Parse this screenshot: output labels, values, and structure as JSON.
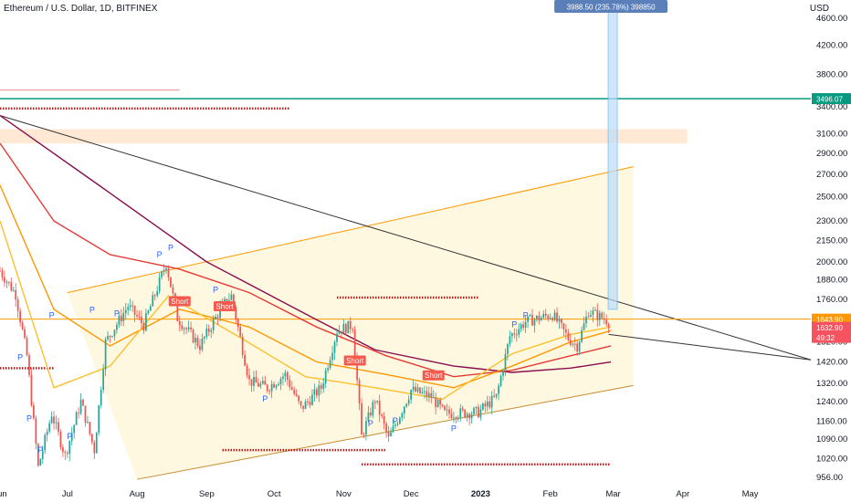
{
  "header": {
    "title": "Ethereum / U.S. Dollar, 1D, BITFINEX",
    "currency": "USD"
  },
  "colors": {
    "up": "#26a69a",
    "down": "#ef5350",
    "accent": "#2962ff",
    "level": "#089981",
    "ema_red": "#e53935",
    "ema_yellow": "#fbc02d",
    "ema_orange": "#ff9800",
    "sma_dark": "#880e4f"
  },
  "chart_data": {
    "type": "candlestick",
    "title": "Ethereum / U.S. Dollar, 1D, BITFINEX",
    "ylabel": "USD",
    "y_scale": "log",
    "ylim": [
      930,
      4900
    ],
    "y_ticks": [
      956,
      1020,
      1090,
      1160,
      1240,
      1320,
      1420,
      1520,
      1640,
      1760,
      1880,
      2000,
      2150,
      2300,
      2500,
      2700,
      2900,
      3100,
      3400,
      3800,
      4200,
      4600
    ],
    "y_tick_labels": [
      "956.00",
      "1020.00",
      "1090.00",
      "1160.00",
      "1240.00",
      "1320.00",
      "1420.00",
      "1520.00",
      "",
      "1760.00",
      "1880.00",
      "2000.00",
      "2150.00",
      "2300.00",
      "2500.00",
      "2700.00",
      "2900.00",
      "3100.00",
      "3400.00",
      "3800.00",
      "4200.00",
      "4600.00"
    ],
    "x_range": [
      "2022-06-01",
      "2023-05-28"
    ],
    "x_ticks": [
      {
        "date": "2022-06-01",
        "label": "Jun"
      },
      {
        "date": "2022-07-01",
        "label": "Jul"
      },
      {
        "date": "2022-08-01",
        "label": "Aug"
      },
      {
        "date": "2022-09-01",
        "label": "Sep"
      },
      {
        "date": "2022-10-01",
        "label": "Oct"
      },
      {
        "date": "2022-11-01",
        "label": "Nov"
      },
      {
        "date": "2022-12-01",
        "label": "Dec"
      },
      {
        "date": "2023-01-01",
        "label": "2023"
      },
      {
        "date": "2023-02-01",
        "label": "Feb"
      },
      {
        "date": "2023-03-01",
        "label": "Mar"
      },
      {
        "date": "2023-04-01",
        "label": "Apr"
      },
      {
        "date": "2023-05-01",
        "label": "May"
      }
    ],
    "price_path": [
      [
        "2022-06-01",
        1940
      ],
      [
        "2022-06-08",
        1790
      ],
      [
        "2022-06-13",
        1450
      ],
      [
        "2022-06-18",
        990
      ],
      [
        "2022-06-24",
        1190
      ],
      [
        "2022-06-30",
        1030
      ],
      [
        "2022-07-07",
        1240
      ],
      [
        "2022-07-13",
        1050
      ],
      [
        "2022-07-18",
        1520
      ],
      [
        "2022-07-28",
        1720
      ],
      [
        "2022-08-04",
        1610
      ],
      [
        "2022-08-14",
        1990
      ],
      [
        "2022-08-19",
        1650
      ],
      [
        "2022-08-29",
        1500
      ],
      [
        "2022-09-08",
        1720
      ],
      [
        "2022-09-12",
        1780
      ],
      [
        "2022-09-20",
        1330
      ],
      [
        "2022-09-28",
        1300
      ],
      [
        "2022-10-06",
        1360
      ],
      [
        "2022-10-13",
        1210
      ],
      [
        "2022-10-22",
        1300
      ],
      [
        "2022-10-29",
        1580
      ],
      [
        "2022-11-05",
        1610
      ],
      [
        "2022-11-09",
        1100
      ],
      [
        "2022-11-15",
        1250
      ],
      [
        "2022-11-21",
        1090
      ],
      [
        "2022-12-01",
        1290
      ],
      [
        "2022-12-10",
        1260
      ],
      [
        "2022-12-16",
        1190
      ],
      [
        "2022-12-31",
        1195
      ],
      [
        "2023-01-08",
        1260
      ],
      [
        "2023-01-14",
        1550
      ],
      [
        "2023-01-21",
        1630
      ],
      [
        "2023-02-02",
        1670
      ],
      [
        "2023-02-09",
        1540
      ],
      [
        "2023-02-13",
        1500
      ],
      [
        "2023-02-18",
        1690
      ],
      [
        "2023-02-27",
        1633
      ]
    ],
    "series": [
      {
        "name": "",
        "color": "#880e4f",
        "points": [
          [
            "2022-06-01",
            3300
          ],
          [
            "2022-07-15",
            2600
          ],
          [
            "2022-09-01",
            2000
          ],
          [
            "2022-10-20",
            1640
          ],
          [
            "2022-11-15",
            1480
          ],
          [
            "2022-12-20",
            1400
          ],
          [
            "2023-01-15",
            1370
          ],
          [
            "2023-02-10",
            1390
          ],
          [
            "2023-02-28",
            1420
          ]
        ]
      },
      {
        "name": "",
        "color": "#e53935",
        "points": [
          [
            "2022-06-01",
            3000
          ],
          [
            "2022-06-25",
            2300
          ],
          [
            "2022-07-20",
            2050
          ],
          [
            "2022-08-20",
            1950
          ],
          [
            "2022-09-20",
            1800
          ],
          [
            "2022-10-20",
            1600
          ],
          [
            "2022-11-20",
            1450
          ],
          [
            "2022-12-20",
            1350
          ],
          [
            "2023-01-15",
            1380
          ],
          [
            "2023-02-10",
            1450
          ],
          [
            "2023-02-28",
            1500
          ]
        ]
      },
      {
        "name": "",
        "color": "#ff9800",
        "points": [
          [
            "2022-06-01",
            2600
          ],
          [
            "2022-06-25",
            1700
          ],
          [
            "2022-07-20",
            1500
          ],
          [
            "2022-08-20",
            1700
          ],
          [
            "2022-09-20",
            1600
          ],
          [
            "2022-10-20",
            1420
          ],
          [
            "2022-11-20",
            1360
          ],
          [
            "2022-12-20",
            1300
          ],
          [
            "2023-01-15",
            1400
          ],
          [
            "2023-02-10",
            1520
          ],
          [
            "2023-02-28",
            1580
          ]
        ]
      },
      {
        "name": "",
        "color": "#fbc02d",
        "points": [
          [
            "2022-06-01",
            2300
          ],
          [
            "2022-06-25",
            1300
          ],
          [
            "2022-07-20",
            1400
          ],
          [
            "2022-08-15",
            1780
          ],
          [
            "2022-09-15",
            1550
          ],
          [
            "2022-10-15",
            1350
          ],
          [
            "2022-11-15",
            1300
          ],
          [
            "2022-12-15",
            1250
          ],
          [
            "2023-01-15",
            1460
          ],
          [
            "2023-02-10",
            1560
          ],
          [
            "2023-02-28",
            1600
          ]
        ]
      }
    ],
    "annotations": {
      "measure_label": "3988.50 (235.78%) 398850",
      "measure_from": [
        "2023-02-28",
        1700
      ],
      "measure_to": [
        "2023-02-28",
        4900
      ],
      "horizontal_level": 3496.07,
      "horizontal_level_label": "3496.07",
      "resistance_zone": [
        3000,
        3150
      ],
      "wedge_upper": [
        [
          "2022-07-01",
          1800
        ],
        [
          "2023-03-10",
          2770
        ]
      ],
      "wedge_lower": [
        [
          "2022-08-01",
          950
        ],
        [
          "2023-03-10",
          1310
        ]
      ],
      "descending_line": [
        [
          "2022-06-01",
          3300
        ],
        [
          "2023-05-28",
          1430
        ]
      ],
      "dotted_levels": [
        {
          "price": 3380,
          "from": "2022-06-01",
          "to": "2022-10-08"
        },
        {
          "price": 1770,
          "from": "2022-10-29",
          "to": "2022-12-31"
        },
        {
          "price": 1390,
          "from": "2022-06-01",
          "to": "2022-06-25"
        },
        {
          "price": 1050,
          "from": "2022-09-08",
          "to": "2022-11-20"
        },
        {
          "price": 1000,
          "from": "2022-11-09",
          "to": "2023-02-28"
        }
      ],
      "signals": [
        {
          "date": "2022-08-20",
          "price": 1740,
          "label": "Short"
        },
        {
          "date": "2022-09-09",
          "price": 1710,
          "label": "Short"
        },
        {
          "date": "2022-11-06",
          "price": 1420,
          "label": "Short"
        },
        {
          "date": "2022-12-11",
          "price": 1350,
          "label": "Short"
        }
      ],
      "pivots": [
        {
          "date": "2022-06-24",
          "price": 1650,
          "label": "P"
        },
        {
          "date": "2022-07-12",
          "price": 1680,
          "label": "P"
        },
        {
          "date": "2022-07-23",
          "price": 1660,
          "label": "P"
        },
        {
          "date": "2022-08-11",
          "price": 2030,
          "label": "P"
        },
        {
          "date": "2022-08-16",
          "price": 2080,
          "label": "P"
        },
        {
          "date": "2022-09-05",
          "price": 1800,
          "label": "P"
        },
        {
          "date": "2022-06-10",
          "price": 1430,
          "label": "P"
        },
        {
          "date": "2022-06-14",
          "price": 1160,
          "label": "P"
        },
        {
          "date": "2022-06-19",
          "price": 1040,
          "label": "P"
        },
        {
          "date": "2022-07-02",
          "price": 1090,
          "label": "P"
        },
        {
          "date": "2022-09-27",
          "price": 1240,
          "label": "P"
        },
        {
          "date": "2022-11-13",
          "price": 1140,
          "label": "P"
        },
        {
          "date": "2022-11-24",
          "price": 1150,
          "label": "P"
        },
        {
          "date": "2022-12-20",
          "price": 1120,
          "label": "P"
        },
        {
          "date": "2023-01-16",
          "price": 1600,
          "label": "P"
        },
        {
          "date": "2023-01-21",
          "price": 1650,
          "label": "P"
        }
      ]
    },
    "price_labels": [
      {
        "price": 1643.9,
        "label": "1643.90",
        "bg": "#ff9800"
      },
      {
        "price": 1632.9,
        "label": "1632.90",
        "bg": "#f7525f"
      },
      {
        "price": 1600,
        "label": "49:32",
        "bg": "#f7525f"
      }
    ]
  }
}
